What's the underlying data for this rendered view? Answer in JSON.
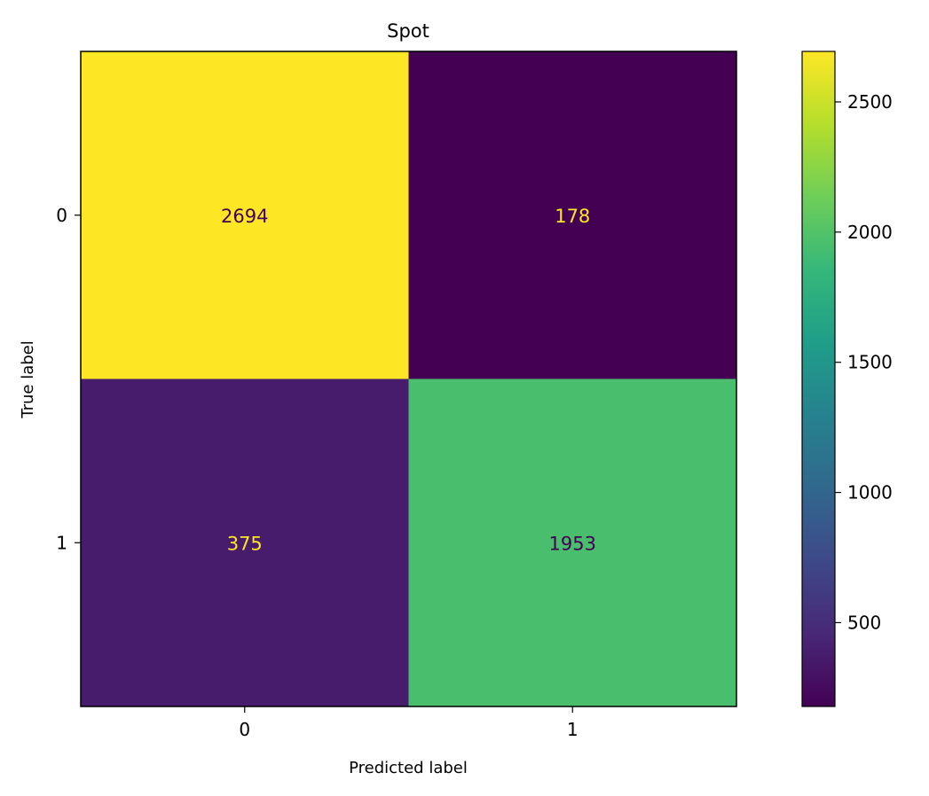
{
  "chart_data": {
    "type": "heatmap",
    "title": "Spot",
    "xlabel": "Predicted label",
    "ylabel": "True label",
    "x_categories": [
      "0",
      "1"
    ],
    "y_categories": [
      "0",
      "1"
    ],
    "matrix": [
      [
        2694,
        178
      ],
      [
        375,
        1953
      ]
    ],
    "colormap": "viridis",
    "colorbar": {
      "range": [
        178,
        2694
      ],
      "ticks": [
        500,
        1000,
        1500,
        2000,
        2500
      ],
      "tick_labels": [
        "500",
        "1000",
        "1500",
        "2000",
        "2500"
      ]
    },
    "text_color_dark": "#440154",
    "text_color_light": "#fde725"
  }
}
